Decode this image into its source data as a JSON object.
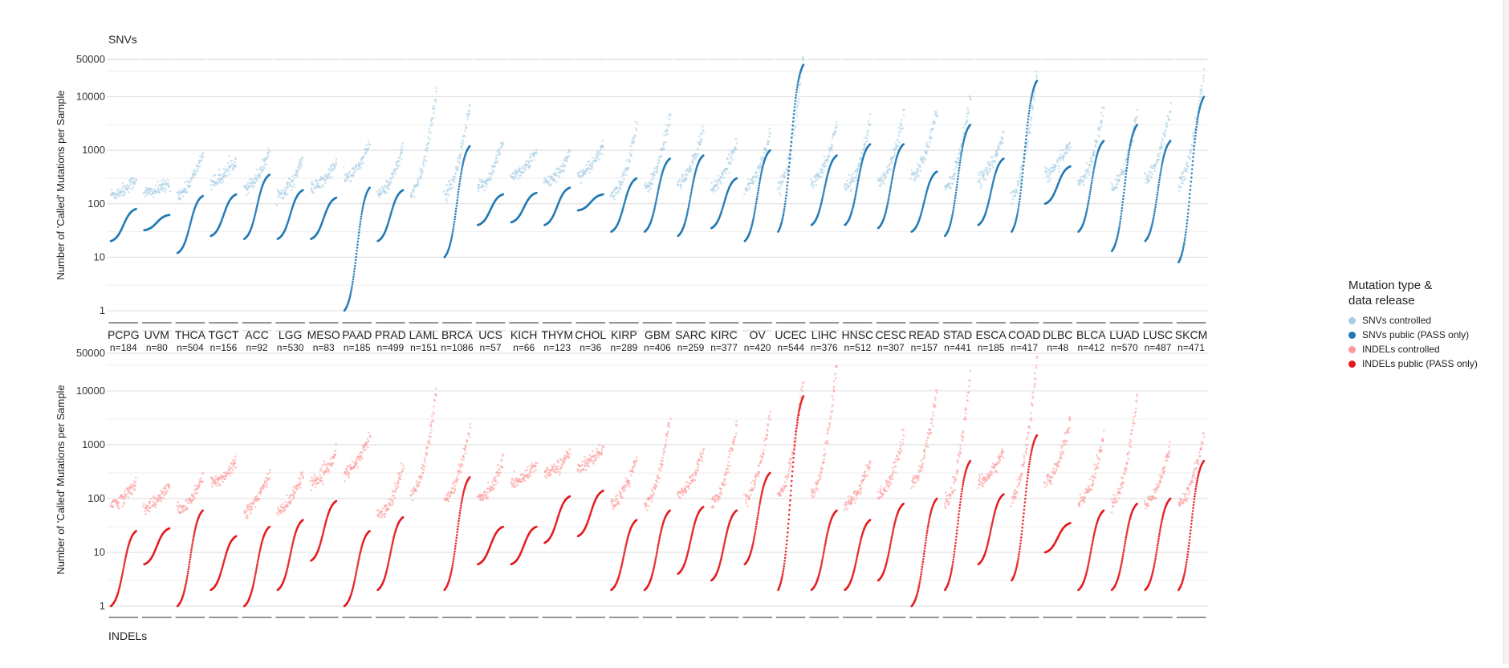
{
  "chart_data": [
    {
      "type": "scatter",
      "title": "SNVs",
      "ylabel": "Number of 'Called' Mutations per Sample",
      "yscale": "log",
      "ylim": [
        0.8,
        50000
      ],
      "yticks": [
        1,
        10,
        100,
        1000,
        10000,
        50000
      ],
      "grid": true,
      "categories": [
        {
          "code": "PCPG",
          "n": "n=184",
          "controlled": [
            150,
            300
          ],
          "public": [
            20,
            80
          ]
        },
        {
          "code": "UVM",
          "n": "n=80",
          "controlled": [
            160,
            240
          ],
          "public": [
            32,
            62
          ]
        },
        {
          "code": "THCA",
          "n": "n=504",
          "controlled": [
            150,
            900
          ],
          "public": [
            12,
            140
          ]
        },
        {
          "code": "TGCT",
          "n": "n=156",
          "controlled": [
            250,
            700
          ],
          "public": [
            25,
            150
          ]
        },
        {
          "code": "ACC",
          "n": "n=92",
          "controlled": [
            200,
            1000
          ],
          "public": [
            22,
            350
          ]
        },
        {
          "code": "LGG",
          "n": "n=530",
          "controlled": [
            150,
            700
          ],
          "public": [
            22,
            180
          ]
        },
        {
          "code": "MESO",
          "n": "n=83",
          "controlled": [
            200,
            600
          ],
          "public": [
            22,
            130
          ]
        },
        {
          "code": "PAAD",
          "n": "n=185",
          "controlled": [
            300,
            1300
          ],
          "public": [
            1,
            200
          ]
        },
        {
          "code": "PRAD",
          "n": "n=499",
          "controlled": [
            150,
            1200
          ],
          "public": [
            20,
            180
          ]
        },
        {
          "code": "LAML",
          "n": "n=151",
          "controlled": [
            160,
            13000
          ],
          "public": null
        },
        {
          "code": "BRCA",
          "n": "n=1086",
          "controlled": [
            150,
            7000
          ],
          "public": [
            10,
            1200
          ]
        },
        {
          "code": "UCS",
          "n": "n=57",
          "controlled": [
            200,
            1500
          ],
          "public": [
            40,
            150
          ]
        },
        {
          "code": "KICH",
          "n": "n=66",
          "controlled": [
            350,
            900
          ],
          "public": [
            45,
            160
          ]
        },
        {
          "code": "THYM",
          "n": "n=123",
          "controlled": [
            250,
            900
          ],
          "public": [
            40,
            200
          ]
        },
        {
          "code": "CHOL",
          "n": "n=36",
          "controlled": [
            350,
            1200
          ],
          "public": [
            75,
            150
          ]
        },
        {
          "code": "KIRP",
          "n": "n=289",
          "controlled": [
            150,
            2800
          ],
          "public": [
            30,
            300
          ]
        },
        {
          "code": "GBM",
          "n": "n=406",
          "controlled": [
            200,
            4500
          ],
          "public": [
            30,
            700
          ]
        },
        {
          "code": "SARC",
          "n": "n=259",
          "controlled": [
            250,
            2500
          ],
          "public": [
            25,
            800
          ]
        },
        {
          "code": "KIRC",
          "n": "n=377",
          "controlled": [
            200,
            1500
          ],
          "public": [
            35,
            300
          ]
        },
        {
          "code": "OV",
          "n": "n=420",
          "controlled": [
            200,
            2200
          ],
          "public": [
            20,
            1000
          ]
        },
        {
          "code": "UCEC",
          "n": "n=544",
          "controlled": [
            200,
            60000
          ],
          "public": [
            30,
            40000
          ]
        },
        {
          "code": "LIHC",
          "n": "n=376",
          "controlled": [
            250,
            3000
          ],
          "public": [
            40,
            800
          ]
        },
        {
          "code": "HNSC",
          "n": "n=512",
          "controlled": [
            200,
            3500
          ],
          "public": [
            40,
            1300
          ]
        },
        {
          "code": "CESC",
          "n": "n=307",
          "controlled": [
            250,
            5000
          ],
          "public": [
            35,
            1300
          ]
        },
        {
          "code": "READ",
          "n": "n=157",
          "controlled": [
            350,
            6000
          ],
          "public": [
            30,
            400
          ]
        },
        {
          "code": "STAD",
          "n": "n=441",
          "controlled": [
            200,
            10000
          ],
          "public": [
            25,
            3000
          ]
        },
        {
          "code": "ESCA",
          "n": "n=185",
          "controlled": [
            300,
            2000
          ],
          "public": [
            40,
            700
          ]
        },
        {
          "code": "COAD",
          "n": "n=417",
          "controlled": [
            150,
            30000
          ],
          "public": [
            30,
            20000
          ]
        },
        {
          "code": "DLBC",
          "n": "n=48",
          "controlled": [
            350,
            1500
          ],
          "public": [
            100,
            500
          ]
        },
        {
          "code": "BLCA",
          "n": "n=412",
          "controlled": [
            250,
            6000
          ],
          "public": [
            30,
            1500
          ]
        },
        {
          "code": "LUAD",
          "n": "n=570",
          "controlled": [
            200,
            5000
          ],
          "public": [
            13,
            3000
          ]
        },
        {
          "code": "LUSC",
          "n": "n=487",
          "controlled": [
            300,
            6000
          ],
          "public": [
            20,
            1500
          ]
        },
        {
          "code": "SKCM",
          "n": "n=471",
          "controlled": [
            250,
            30000
          ],
          "public": [
            8,
            10000
          ]
        }
      ]
    },
    {
      "type": "scatter",
      "title": "INDELs",
      "ylabel": "Number of 'Called' Mutations per Sample",
      "yscale": "log",
      "ylim": [
        0.8,
        50000
      ],
      "yticks": [
        1,
        10,
        100,
        1000,
        10000,
        50000
      ],
      "grid": true,
      "categories": [
        {
          "code": "PCPG",
          "controlled": [
            80,
            200
          ],
          "public": [
            1,
            25
          ]
        },
        {
          "code": "UVM",
          "controlled": [
            70,
            180
          ],
          "public": [
            6,
            28
          ]
        },
        {
          "code": "THCA",
          "controlled": [
            60,
            250
          ],
          "public": [
            1,
            60
          ]
        },
        {
          "code": "TGCT",
          "controlled": [
            200,
            500
          ],
          "public": [
            2,
            20
          ]
        },
        {
          "code": "ACC",
          "controlled": [
            60,
            300
          ],
          "public": [
            1,
            30
          ]
        },
        {
          "code": "LGG",
          "controlled": [
            60,
            300
          ],
          "public": [
            2,
            40
          ]
        },
        {
          "code": "MESO",
          "controlled": [
            200,
            700
          ],
          "public": [
            7,
            90
          ]
        },
        {
          "code": "PAAD",
          "controlled": [
            300,
            1500
          ],
          "public": [
            1,
            25
          ]
        },
        {
          "code": "PRAD",
          "controlled": [
            50,
            400
          ],
          "public": [
            2,
            45
          ]
        },
        {
          "code": "LAML",
          "controlled": [
            120,
            10000
          ],
          "public": null
        },
        {
          "code": "BRCA",
          "controlled": [
            100,
            2000
          ],
          "public": [
            2,
            250
          ]
        },
        {
          "code": "UCS",
          "controlled": [
            100,
            500
          ],
          "public": [
            6,
            30
          ]
        },
        {
          "code": "KICH",
          "controlled": [
            200,
            450
          ],
          "public": [
            6,
            30
          ]
        },
        {
          "code": "THYM",
          "controlled": [
            300,
            700
          ],
          "public": [
            15,
            110
          ]
        },
        {
          "code": "CHOL",
          "controlled": [
            400,
            900
          ],
          "public": [
            20,
            140
          ]
        },
        {
          "code": "KIRP",
          "controlled": [
            80,
            600
          ],
          "public": [
            2,
            40
          ]
        },
        {
          "code": "GBM",
          "controlled": [
            80,
            3000
          ],
          "public": [
            2,
            60
          ]
        },
        {
          "code": "SARC",
          "controlled": [
            120,
            800
          ],
          "public": [
            4,
            70
          ]
        },
        {
          "code": "KIRC",
          "controlled": [
            80,
            2500
          ],
          "public": [
            3,
            60
          ]
        },
        {
          "code": "OV",
          "controlled": [
            100,
            3500
          ],
          "public": [
            6,
            300
          ]
        },
        {
          "code": "UCEC",
          "controlled": [
            120,
            15000
          ],
          "public": [
            2,
            8000
          ]
        },
        {
          "code": "LIHC",
          "controlled": [
            120,
            30000
          ],
          "public": [
            2,
            60
          ]
        },
        {
          "code": "HNSC",
          "controlled": [
            80,
            500
          ],
          "public": [
            2,
            40
          ]
        },
        {
          "code": "CESC",
          "controlled": [
            120,
            1500
          ],
          "public": [
            3,
            80
          ]
        },
        {
          "code": "READ",
          "controlled": [
            200,
            10000
          ],
          "public": [
            1,
            100
          ]
        },
        {
          "code": "STAD",
          "controlled": [
            80,
            20000
          ],
          "public": [
            2,
            500
          ]
        },
        {
          "code": "ESCA",
          "controlled": [
            200,
            800
          ],
          "public": [
            6,
            120
          ]
        },
        {
          "code": "COAD",
          "controlled": [
            100,
            40000
          ],
          "public": [
            3,
            1500
          ]
        },
        {
          "code": "DLBC",
          "controlled": [
            200,
            3000
          ],
          "public": [
            10,
            35
          ]
        },
        {
          "code": "BLCA",
          "controlled": [
            80,
            1500
          ],
          "public": [
            2,
            60
          ]
        },
        {
          "code": "LUAD",
          "controlled": [
            80,
            8000
          ],
          "public": [
            2,
            80
          ]
        },
        {
          "code": "LUSC",
          "controlled": [
            80,
            1000
          ],
          "public": [
            2,
            100
          ]
        },
        {
          "code": "SKCM",
          "controlled": [
            80,
            1500
          ],
          "public": [
            2,
            500
          ]
        }
      ]
    }
  ],
  "legend": {
    "title_line1": "Mutation type &",
    "title_line2": "data release",
    "items": [
      {
        "label": "SNVs controlled",
        "color": "#a6cee3"
      },
      {
        "label": "SNVs public (PASS only)",
        "color": "#1f78b4"
      },
      {
        "label": "INDELs controlled",
        "color": "#fb9a99"
      },
      {
        "label": "INDELs public (PASS only)",
        "color": "#e31a1c"
      }
    ]
  },
  "colors": {
    "snv_controlled": "#a6cee3",
    "snv_public": "#1f78b4",
    "indel_controlled": "#fb9a99",
    "indel_public": "#e31a1c"
  }
}
